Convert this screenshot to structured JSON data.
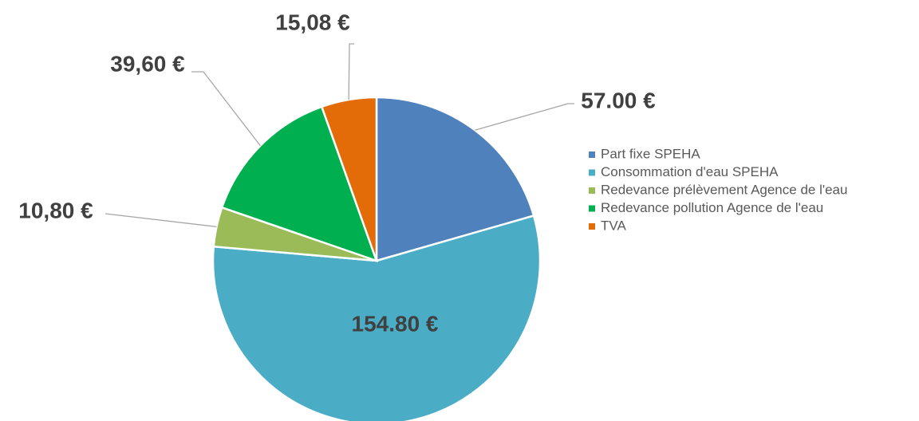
{
  "chart_data": {
    "type": "pie",
    "categories": [
      "Part fixe SPEHA",
      "Consommation d'eau SPEHA",
      "Redevance prélèvement Agence de l'eau",
      "Redevance pollution Agence de l'eau",
      "TVA"
    ],
    "values": [
      57.0,
      154.8,
      10.8,
      39.6,
      15.08
    ],
    "value_labels": [
      "57.00 €",
      "154.80 €",
      "10,80 €",
      "39,60 €",
      "15,08 €"
    ],
    "colors": [
      "#4f81bd",
      "#4bacc6",
      "#9bbb59",
      "#00b050",
      "#e36c09"
    ],
    "legend": "right"
  }
}
